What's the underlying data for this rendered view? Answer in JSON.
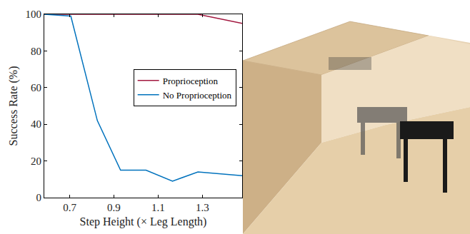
{
  "chart_data": {
    "type": "line",
    "x_label": "Step Height (× Leg Length)",
    "y_label": "Success Rate (%)",
    "x": [
      0.585,
      0.705,
      0.825,
      0.93,
      1.045,
      1.165,
      1.28,
      1.48
    ],
    "series": [
      {
        "name": "Proprioception",
        "color": "#a2173f",
        "values": [
          100,
          100,
          100,
          100,
          100,
          100,
          100,
          95
        ]
      },
      {
        "name": "No Proprioception",
        "color": "#0072bd",
        "values": [
          100,
          99,
          42,
          15,
          15,
          9,
          14,
          12
        ]
      }
    ],
    "xlim": [
      0.585,
      1.48
    ],
    "xticks": [
      0.7,
      0.9,
      1.1,
      1.3
    ],
    "ylim": [
      0,
      100
    ],
    "yticks": [
      0,
      20,
      40,
      60,
      80,
      100
    ],
    "grid": false,
    "legend": "right"
  }
}
